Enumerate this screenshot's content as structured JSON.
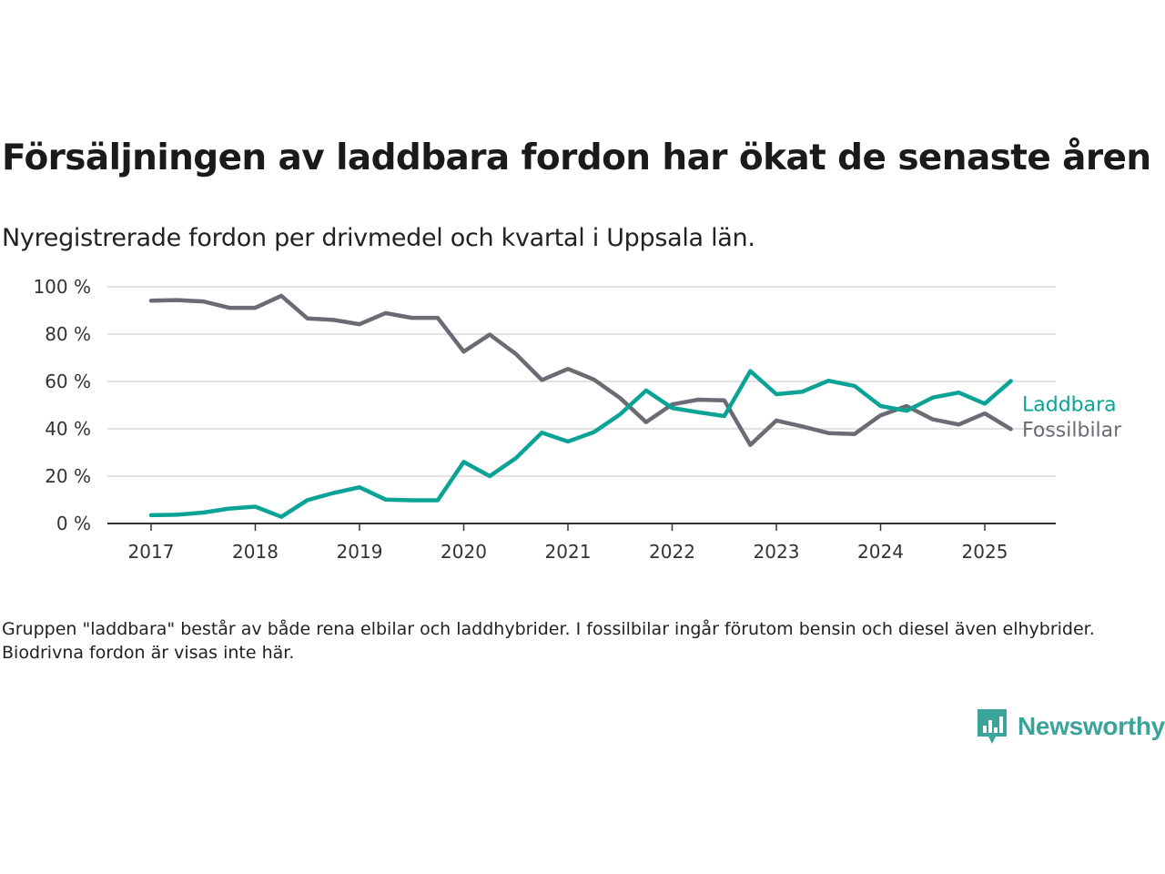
{
  "title": "Försäljningen av laddbara fordon har ökat de senaste åren",
  "subtitle": "Nyregistrerade fordon per drivmedel och kvartal i Uppsala län.",
  "note": "Gruppen \"laddbara\" består av både rena elbilar och laddhybrider. I fossilbilar ingår förutom bensin och diesel även elhybrider. Biodrivna fordon är visas inte här.",
  "brand": {
    "name": "Newsworthy",
    "color": "#3aa39a",
    "icon": "bar-chart-logo-icon"
  },
  "chart_data": {
    "type": "line",
    "title": "Försäljningen av laddbara fordon har ökat de senaste åren",
    "subtitle": "Nyregistrerade fordon per drivmedel och kvartal i Uppsala län.",
    "xlabel": "",
    "ylabel": "",
    "ylim": [
      0,
      100
    ],
    "xlim": [
      2017,
      2025.5
    ],
    "y_ticks": [
      0,
      20,
      40,
      60,
      80,
      100
    ],
    "y_tick_labels": [
      "0 %",
      "20 %",
      "40 %",
      "60 %",
      "80 %",
      "100 %"
    ],
    "x_ticks": [
      2017,
      2018,
      2019,
      2020,
      2021,
      2022,
      2023,
      2024,
      2025
    ],
    "x_tick_labels": [
      "2017",
      "2018",
      "2019",
      "2020",
      "2021",
      "2022",
      "2023",
      "2024",
      "2025"
    ],
    "grid": true,
    "legend": "direct-labels-right",
    "x": [
      2017.0,
      2017.25,
      2017.5,
      2017.75,
      2018.0,
      2018.25,
      2018.5,
      2018.75,
      2019.0,
      2019.25,
      2019.5,
      2019.75,
      2020.0,
      2020.25,
      2020.5,
      2020.75,
      2021.0,
      2021.25,
      2021.5,
      2021.75,
      2022.0,
      2022.25,
      2022.5,
      2022.75,
      2023.0,
      2023.25,
      2023.5,
      2023.75,
      2024.0,
      2024.25,
      2024.5,
      2024.75,
      2025.0,
      2025.25
    ],
    "series": [
      {
        "name": "Laddbara",
        "color": "#0aa396",
        "values": [
          3.5,
          3.7,
          4.6,
          6.3,
          7.1,
          2.8,
          9.9,
          12.9,
          15.3,
          10.1,
          9.8,
          9.8,
          26.0,
          20.0,
          27.6,
          38.4,
          34.6,
          38.6,
          46.1,
          56.2,
          48.8,
          47.0,
          45.4,
          64.4,
          54.6,
          55.7,
          60.3,
          58.1,
          49.6,
          47.6,
          53.2,
          55.3,
          50.6,
          60.2
        ]
      },
      {
        "name": "Fossilbilar",
        "color": "#6b6b73",
        "values": [
          94.1,
          94.4,
          93.8,
          91.1,
          91.1,
          96.2,
          86.6,
          86.0,
          84.2,
          88.9,
          86.9,
          86.9,
          72.6,
          79.8,
          71.6,
          60.6,
          65.3,
          60.8,
          53.0,
          42.8,
          50.3,
          52.3,
          52.0,
          33.2,
          43.5,
          41.0,
          38.2,
          37.8,
          45.7,
          49.6,
          44.0,
          41.8,
          46.5,
          39.9
        ]
      }
    ]
  }
}
